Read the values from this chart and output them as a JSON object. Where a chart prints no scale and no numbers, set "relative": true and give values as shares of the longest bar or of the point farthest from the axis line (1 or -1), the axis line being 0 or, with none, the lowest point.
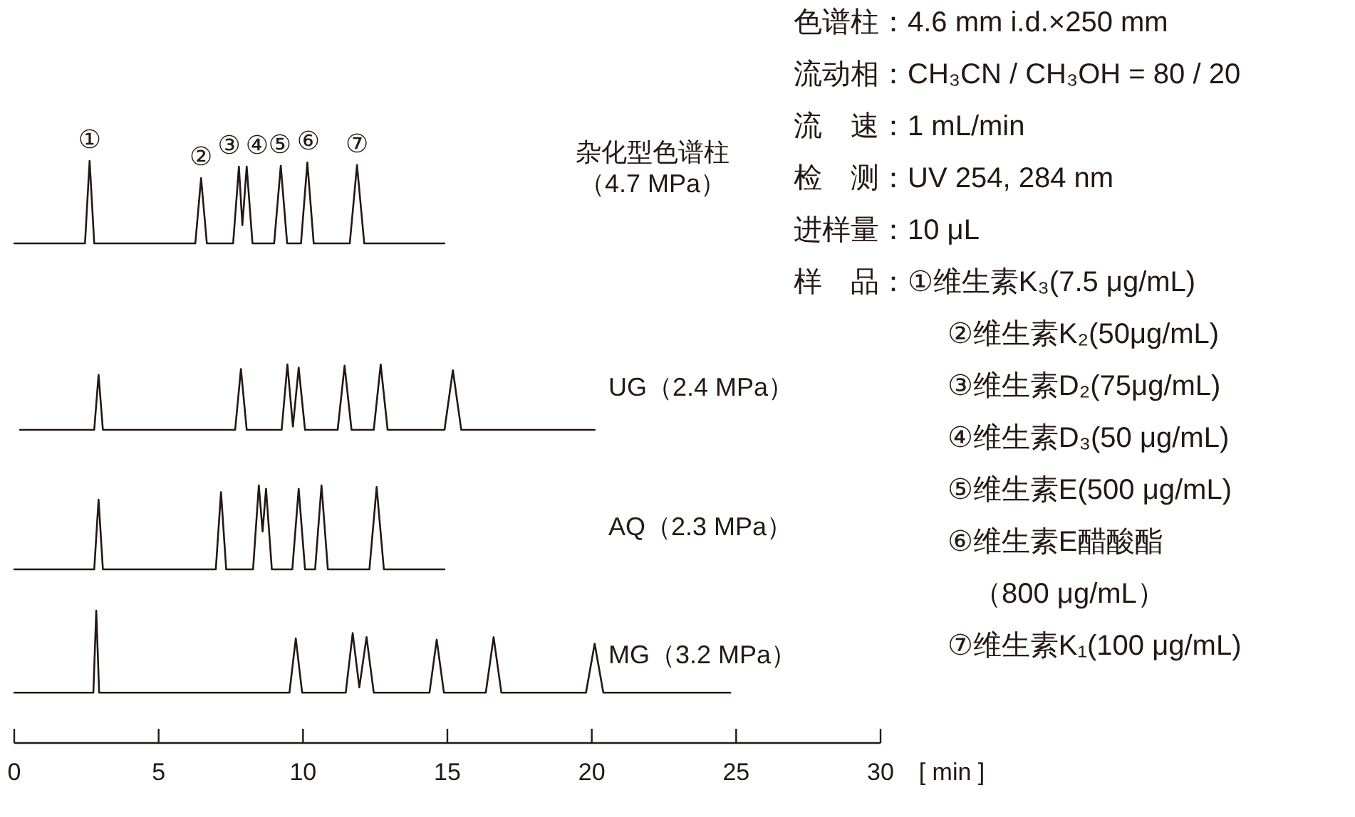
{
  "chart_data": [
    {
      "type": "line",
      "relative": true,
      "tick_labels": false,
      "xlim": [
        0,
        30
      ],
      "series": [
        {
          "name": "杂化型色谱柱（4.7 MPa）",
          "color": "#231815",
          "x": [
            0,
            2.45,
            2.61,
            2.77,
            6.27,
            6.47,
            6.67,
            7.58,
            7.78,
            7.9,
            8.05,
            8.25,
            9.0,
            9.23,
            9.45,
            9.93,
            10.15,
            10.37,
            11.62,
            11.87,
            12.12,
            14.9
          ],
          "values": [
            0,
            0,
            1,
            0,
            0,
            0.79,
            0,
            0,
            0.93,
            0.22,
            0.93,
            0,
            0,
            0.94,
            0,
            0,
            0.98,
            0,
            0,
            0.95,
            0,
            0
          ]
        }
      ],
      "annotations": [
        {
          "text": "①",
          "x": 2.61,
          "y": 1
        },
        {
          "text": "②",
          "x": 6.47,
          "y": 0.79
        },
        {
          "text": "③",
          "x": 7.78,
          "y": 0.93
        },
        {
          "text": "④",
          "x": 8.05,
          "y": 0.93
        },
        {
          "text": "⑤",
          "x": 9.23,
          "y": 0.94
        },
        {
          "text": "⑥",
          "x": 10.15,
          "y": 0.98
        },
        {
          "text": "⑦",
          "x": 11.87,
          "y": 0.95
        }
      ]
    },
    {
      "type": "line",
      "relative": true,
      "tick_labels": false,
      "xlim": [
        0,
        30
      ],
      "series": [
        {
          "name": "UG（2.4 MPa）",
          "color": "#231815",
          "x": [
            0.2,
            2.77,
            2.92,
            3.07,
            7.65,
            7.85,
            8.05,
            9.26,
            9.46,
            9.65,
            9.85,
            10.07,
            11.2,
            11.44,
            11.68,
            12.45,
            12.69,
            12.93,
            14.9,
            15.19,
            15.48,
            20.1
          ],
          "values": [
            0,
            0,
            0.84,
            0,
            0,
            0.93,
            0,
            0,
            1,
            0.05,
            0.95,
            0,
            0,
            0.98,
            0,
            0,
            1,
            0,
            0,
            0.91,
            0,
            0
          ]
        }
      ]
    },
    {
      "type": "line",
      "relative": true,
      "tick_labels": false,
      "xlim": [
        0,
        30
      ],
      "series": [
        {
          "name": "AQ（2.3 MPa）",
          "color": "#231815",
          "x": [
            0,
            2.77,
            2.92,
            3.07,
            6.98,
            7.16,
            7.34,
            8.27,
            8.47,
            8.6,
            8.72,
            8.92,
            9.63,
            9.85,
            10.07,
            10.42,
            10.64,
            10.86,
            12.3,
            12.55,
            12.8,
            14.9
          ],
          "values": [
            0,
            0,
            0.83,
            0,
            0,
            0.92,
            0,
            0,
            1,
            0.45,
            0.96,
            0,
            0,
            0.96,
            0,
            0,
            1,
            0,
            0,
            0.98,
            0,
            0
          ]
        }
      ]
    },
    {
      "type": "line",
      "relative": true,
      "tick_labels": "x",
      "xlim": [
        0,
        30
      ],
      "xticks": [
        0,
        5,
        10,
        15,
        20,
        25,
        30
      ],
      "xlabel": "[ min ]",
      "series": [
        {
          "name": "MG（3.2 MPa）",
          "color": "#231815",
          "x": [
            0,
            2.74,
            2.84,
            2.94,
            9.53,
            9.75,
            9.97,
            11.48,
            11.72,
            11.95,
            12.2,
            12.45,
            14.38,
            14.63,
            14.88,
            16.33,
            16.6,
            16.87,
            19.8,
            20.1,
            20.4,
            24.8
          ],
          "values": [
            0.38,
            0.38,
            1,
            0.38,
            0.38,
            0.79,
            0.38,
            0.38,
            0.83,
            0.42,
            0.8,
            0.38,
            0.38,
            0.78,
            0.38,
            0.38,
            0.8,
            0.38,
            0.38,
            0.75,
            0.38,
            0.38
          ]
        }
      ]
    },
    {
      "type": "other",
      "annotations": [
        "色谱柱：4.6 mm i.d.×250 mm",
        "流动相：CH₃CN / CH₃OH = 80 / 20",
        "流　速：1 mL/min",
        "检　测：UV 254, 284 nm",
        "进样量：10 μL",
        "样　品：①维生素K₃(7.5 μg/mL)",
        "②维生素K₂(50μg/mL)",
        "③维生素D₂(75μg/mL)",
        "④维生素D₃(50 μg/mL)",
        "⑤维生素E(500 μg/mL)",
        "⑥维生素E醋酸酯",
        "（800 μg/mL）",
        "⑦维生素K₁(100 μg/mL)"
      ]
    }
  ]
}
